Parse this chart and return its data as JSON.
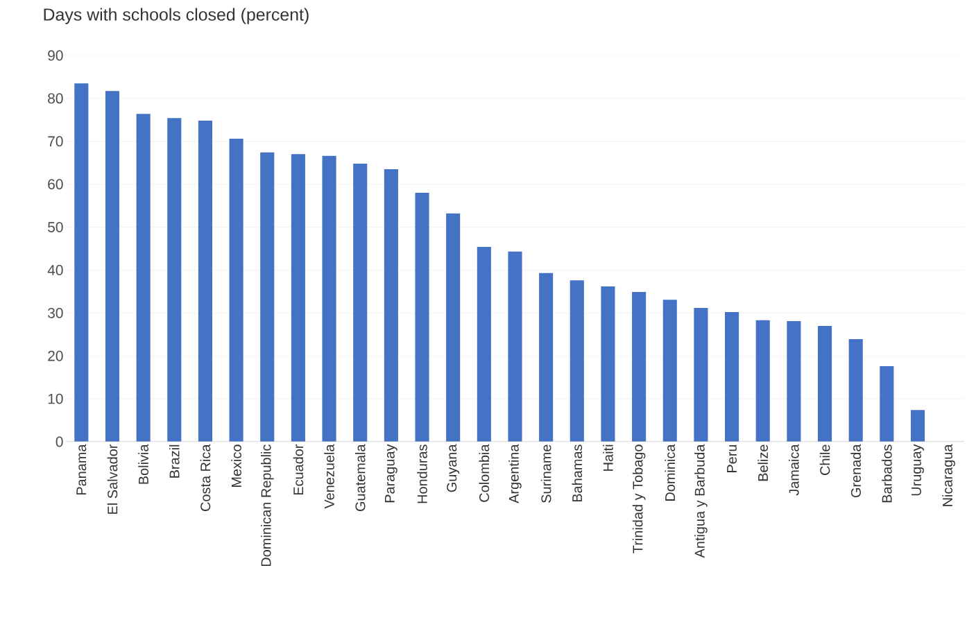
{
  "chart_data": {
    "type": "bar",
    "title": "Days with schools closed (percent)",
    "categories": [
      "Panama",
      "El Salvador",
      "Bolivia",
      "Brazil",
      "Costa Rica",
      "Mexico",
      "Dominican Republic",
      "Ecuador",
      "Venezuela",
      "Guatemala",
      "Paraguay",
      "Honduras",
      "Guyana",
      "Colombia",
      "Argentina",
      "Suriname",
      "Bahamas",
      "Haiti",
      "Trinidad y Tobago",
      "Dominica",
      "Antigua y Barbuda",
      "Peru",
      "Belize",
      "Jamaica",
      "Chile",
      "Grenada",
      "Barbados",
      "Uruguay",
      "Nicaragua"
    ],
    "values": [
      83.5,
      81.7,
      76.4,
      75.4,
      74.8,
      70.6,
      67.4,
      67.0,
      66.6,
      64.8,
      63.5,
      58.0,
      53.2,
      45.4,
      44.3,
      39.3,
      37.6,
      36.2,
      34.9,
      33.1,
      31.2,
      30.2,
      28.3,
      28.1,
      27.0,
      23.9,
      17.6,
      7.4,
      0
    ],
    "color": "#4472c4",
    "ylim": [
      0,
      90
    ],
    "yticks": [
      0,
      10,
      20,
      30,
      40,
      50,
      60,
      70,
      80,
      90
    ],
    "grid": "y"
  }
}
